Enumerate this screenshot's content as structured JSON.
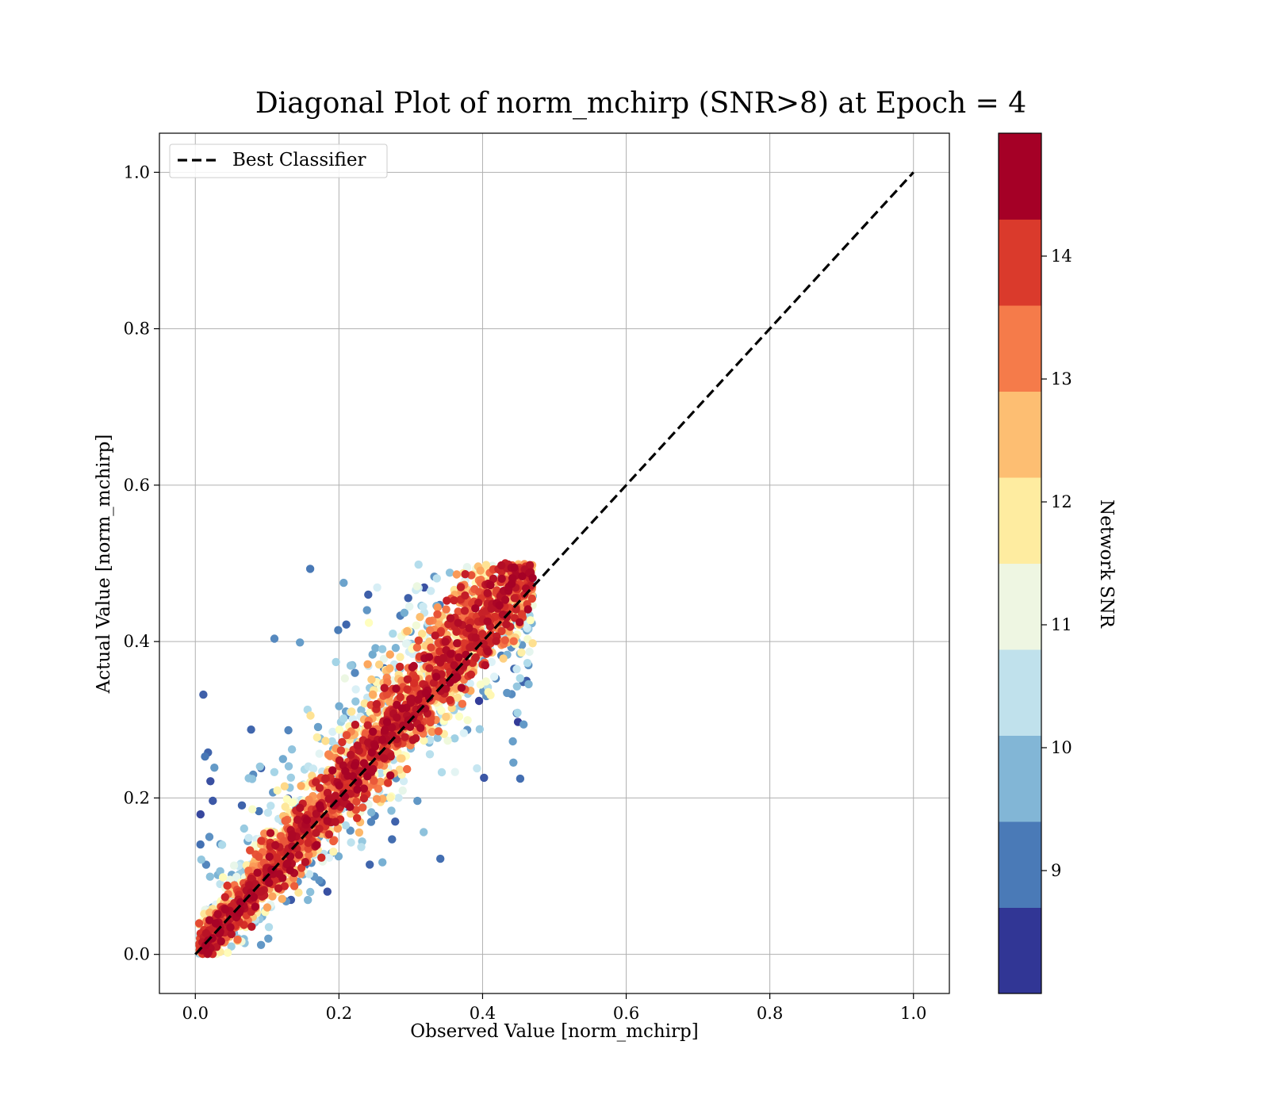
{
  "chart_data": {
    "type": "scatter",
    "title": "Diagonal Plot of norm_mchirp (SNR>8) at Epoch = 4",
    "xlabel": "Observed Value [norm_mchirp]",
    "ylabel": "Actual Value [norm_mchirp]",
    "xlim": [
      -0.05,
      1.05
    ],
    "ylim": [
      -0.05,
      1.05
    ],
    "xticks": [
      "0.0",
      "0.2",
      "0.4",
      "0.6",
      "0.8",
      "1.0"
    ],
    "yticks": [
      "0.0",
      "0.2",
      "0.4",
      "0.6",
      "0.8",
      "1.0"
    ],
    "grid": true,
    "legend": {
      "position": "top-left",
      "entries": [
        {
          "label": "Best Classifier",
          "style": "dashed",
          "color": "#000000"
        }
      ]
    },
    "reference_line": {
      "name": "Best Classifier",
      "x": [
        0.0,
        1.0
      ],
      "y": [
        0.0,
        1.0
      ]
    },
    "colorbar": {
      "label": "Network SNR",
      "range": [
        8.0,
        15.0
      ],
      "ticks": [
        "9",
        "10",
        "11",
        "12",
        "13",
        "14"
      ],
      "colors": [
        "#313695",
        "#4575b4",
        "#74add1",
        "#abd9e9",
        "#e0f3f8",
        "#ffffbf",
        "#fee090",
        "#fdae61",
        "#f46d43",
        "#d73027",
        "#a50026"
      ],
      "bands": [
        "#313695",
        "#4a7ab7",
        "#82b6d6",
        "#c0e1ec",
        "#eef6e2",
        "#feeca0",
        "#fdbe72",
        "#f57b4a",
        "#da3a2c",
        "#a50026"
      ]
    },
    "scatter_summary": {
      "x_range": [
        0.0,
        0.47
      ],
      "y_range": [
        0.0,
        0.5
      ],
      "dense_band_color": "#a50026"
    }
  }
}
